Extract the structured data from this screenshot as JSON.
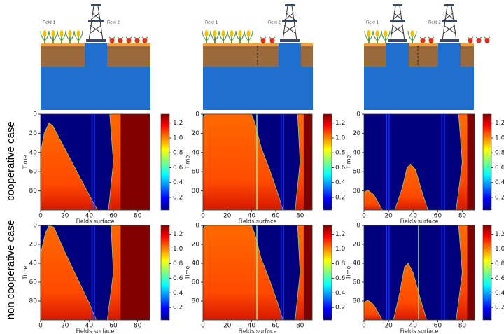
{
  "row_labels": [
    "cooperative case",
    "non cooperative case"
  ],
  "schematics": [
    {
      "left_label": "Field 1",
      "right_label": "Field 2"
    },
    {
      "left_label": "Field 1",
      "right_label": "Field 2"
    },
    {
      "left_label": "Field 1",
      "right_label": "Field 2"
    }
  ],
  "heatmap_axes": {
    "xlabel": "Fields surface",
    "ylabel": "Time",
    "xlim": [
      0,
      90
    ],
    "ylim": [
      100,
      0
    ],
    "xticks": [
      0,
      20,
      40,
      60,
      80
    ],
    "yticks": [
      0,
      20,
      40,
      60,
      80
    ]
  },
  "colorbar": {
    "lim": [
      0.03,
      1.32
    ],
    "ticks": [
      0.2,
      0.4,
      0.6,
      0.8,
      {
        "value": 1,
        "label": "1.0"
      },
      1.2
    ]
  }
}
